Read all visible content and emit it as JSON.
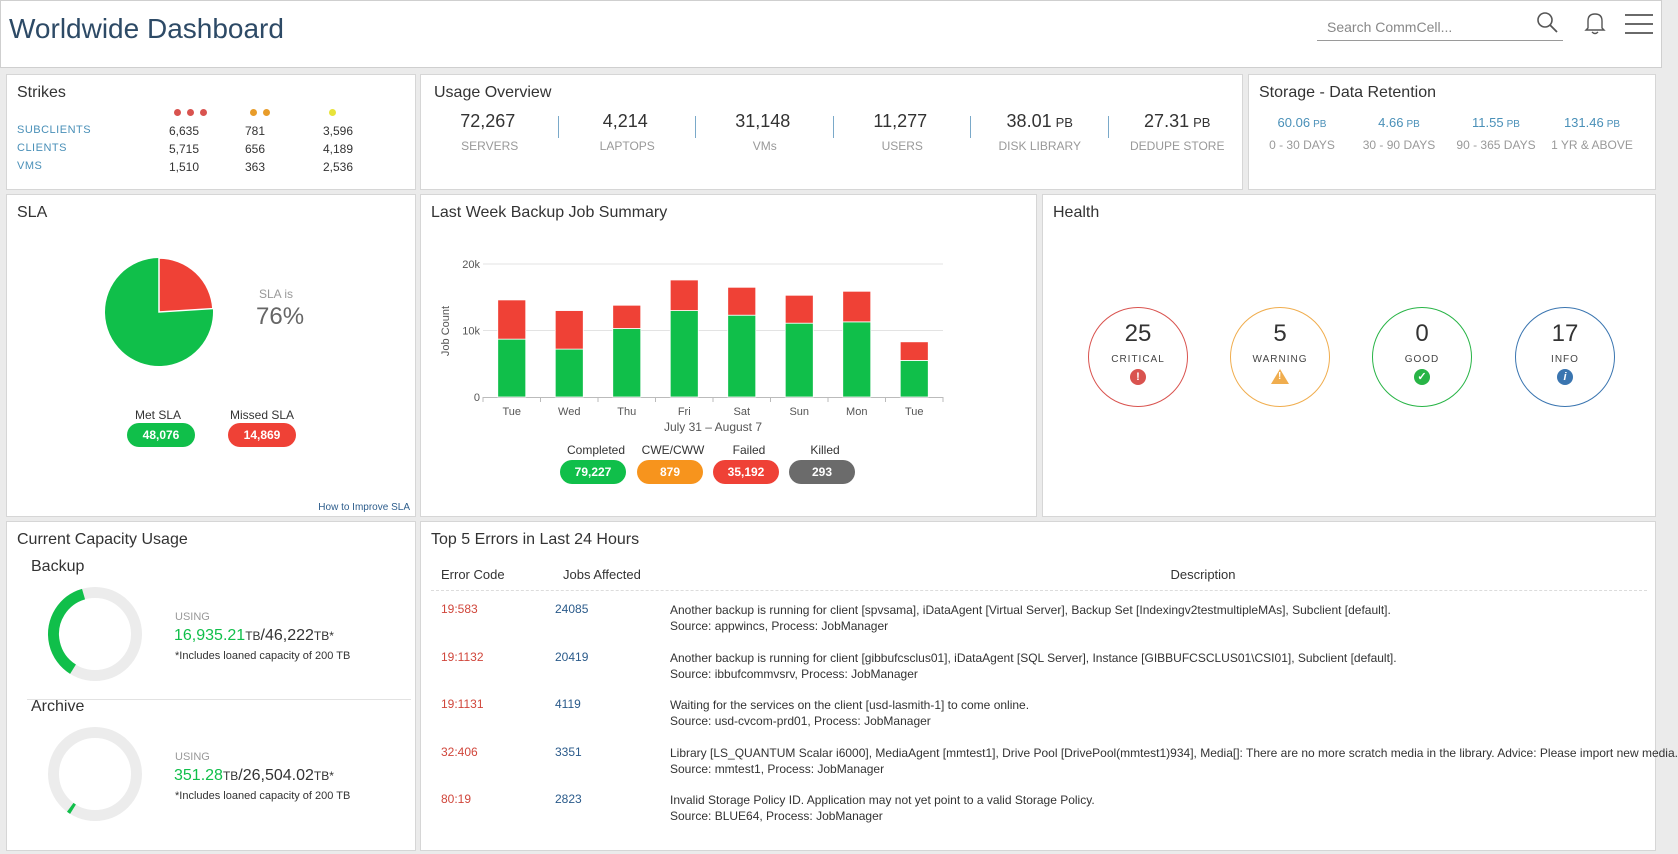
{
  "header": {
    "title": "Worldwide Dashboard",
    "search_placeholder": "Search CommCell...",
    "icons": [
      "search-icon",
      "bell-icon",
      "hamburger-menu-icon"
    ]
  },
  "strikes": {
    "title": "Strikes",
    "dot_colors": [
      "#d9534f",
      "#e89c2a",
      "#e8e33a"
    ],
    "rows": [
      {
        "label": "SUBCLIENTS",
        "values": [
          "6,635",
          "781",
          "3,596"
        ]
      },
      {
        "label": "CLIENTS",
        "values": [
          "5,715",
          "656",
          "4,189"
        ]
      },
      {
        "label": "VMS",
        "values": [
          "1,510",
          "363",
          "2,536"
        ]
      }
    ]
  },
  "usage": {
    "title": "Usage Overview",
    "items": [
      {
        "value": "72,267",
        "unit": "",
        "label": "SERVERS"
      },
      {
        "value": "4,214",
        "unit": "",
        "label": "LAPTOPS"
      },
      {
        "value": "31,148",
        "unit": "",
        "label": "VMs"
      },
      {
        "value": "11,277",
        "unit": "",
        "label": "USERS"
      },
      {
        "value": "38.01",
        "unit": "PB",
        "label": "DISK LIBRARY"
      },
      {
        "value": "27.31",
        "unit": "PB",
        "label": "DEDUPE STORE"
      }
    ]
  },
  "retention": {
    "title": "Storage - Data Retention",
    "items": [
      {
        "value": "60.06",
        "unit": "PB",
        "label": "0 - 30 DAYS"
      },
      {
        "value": "4.66",
        "unit": "PB",
        "label": "30 - 90 DAYS"
      },
      {
        "value": "11.55",
        "unit": "PB",
        "label": "90 - 365 DAYS"
      },
      {
        "value": "131.46",
        "unit": "PB",
        "label": "1 YR & ABOVE"
      }
    ]
  },
  "sla": {
    "title": "SLA",
    "sla_is": "SLA is",
    "percent_text": "76%",
    "met_fraction": 0.76,
    "met_label": "Met SLA",
    "met_value": "48,076",
    "missed_label": "Missed SLA",
    "missed_value": "14,869",
    "link": "How to Improve SLA",
    "met_color": "#10bf4a",
    "missed_color": "#ef4136"
  },
  "backup_summary": {
    "title": "Last Week Backup Job Summary",
    "legend": [
      {
        "label": "Completed",
        "value": "79,227",
        "color": "#10bf4a"
      },
      {
        "label": "CWE/CWW",
        "value": "879",
        "color": "#f7941d"
      },
      {
        "label": "Failed",
        "value": "35,192",
        "color": "#ef4136"
      },
      {
        "label": "Killed",
        "value": "293",
        "color": "#6b6b6b"
      }
    ]
  },
  "chart_data": {
    "type": "bar",
    "stacked": true,
    "categories": [
      "Tue",
      "Wed",
      "Thu",
      "Fri",
      "Sat",
      "Sun",
      "Mon",
      "Tue"
    ],
    "series": [
      {
        "name": "Completed",
        "values": [
          8700,
          7200,
          10300,
          13000,
          12300,
          11100,
          11300,
          5500
        ],
        "color": "#10bf4a"
      },
      {
        "name": "Failed",
        "values": [
          5900,
          5800,
          3500,
          4600,
          4200,
          4200,
          4600,
          2800
        ],
        "color": "#ef4136"
      }
    ],
    "ylabel": "Job Count",
    "xlabel": "July 31 – August 7",
    "yticks": [
      {
        "value": 0,
        "label": "0"
      },
      {
        "value": 10000,
        "label": "10k"
      },
      {
        "value": 20000,
        "label": "20k"
      }
    ],
    "ylim": [
      0,
      20000
    ],
    "grid": true
  },
  "health": {
    "title": "Health",
    "items": [
      {
        "value": "25",
        "label": "CRITICAL",
        "color": "#d9534f",
        "icon": "!",
        "icon_name": "critical-icon"
      },
      {
        "value": "5",
        "label": "WARNING",
        "color": "#f0ad4e",
        "icon": "!",
        "icon_name": "warning-icon"
      },
      {
        "value": "0",
        "label": "GOOD",
        "color": "#28b446",
        "icon": "✓",
        "icon_name": "check-icon"
      },
      {
        "value": "17",
        "label": "INFO",
        "color": "#3a75b0",
        "icon": "i",
        "icon_name": "info-icon"
      }
    ]
  },
  "capacity": {
    "title": "Current Capacity Usage",
    "sections": [
      {
        "name": "Backup",
        "using": "USING",
        "used": "16,935.21",
        "used_unit": "TB",
        "total": "/46,222",
        "total_unit": "TB",
        "star": "*",
        "note": "*Includes loaned capacity of 200 TB",
        "fraction": 0.366
      },
      {
        "name": "Archive",
        "using": "USING",
        "used": "351.28",
        "used_unit": "TB",
        "total": "/26,504.02",
        "total_unit": "TB",
        "star": "*",
        "note": "*Includes loaned capacity of 200 TB",
        "fraction": 0.013
      }
    ]
  },
  "errors": {
    "title": "Top 5 Errors in Last 24 Hours",
    "headers": [
      "Error Code",
      "Jobs Affected",
      "Description"
    ],
    "rows": [
      {
        "code": "19:583",
        "jobs": "24085",
        "line1": "Another backup is running for client [spvsama], iDataAgent [Virtual Server], Backup Set [Indexingv2testmultipleMAs], Subclient [default].",
        "line2": "Source: appwincs, Process: JobManager"
      },
      {
        "code": "19:1132",
        "jobs": "20419",
        "line1": "Another backup is running for client [gibbufcsclus01], iDataAgent [SQL Server], Instance [GIBBUFCSCLUS01\\CSI01], Subclient [default].",
        "line2": "Source:   ibbufcommvsrv, Process: JobManager"
      },
      {
        "code": "19:1131",
        "jobs": "4119",
        "line1": "Waiting for the services on the client [usd-lasmith-1] to come online.",
        "line2": "Source: usd-cvcom-prd01, Process: JobManager"
      },
      {
        "code": "32:406",
        "jobs": "3351",
        "line1": "Library [LS_QUANTUM Scalar i6000], MediaAgent [mmtest1], Drive Pool [DrivePool(mmtest1)934], Media[]: There are no more scratch media in the library. Advice: Please import new media.",
        "line2": "Source: mmtest1, Process: JobManager"
      },
      {
        "code": "80:19",
        "jobs": "2823",
        "line1": "Invalid Storage Policy ID. Application may not yet point to a valid Storage Policy.",
        "line2": "Source: BLUE64, Process: JobManager"
      }
    ]
  }
}
